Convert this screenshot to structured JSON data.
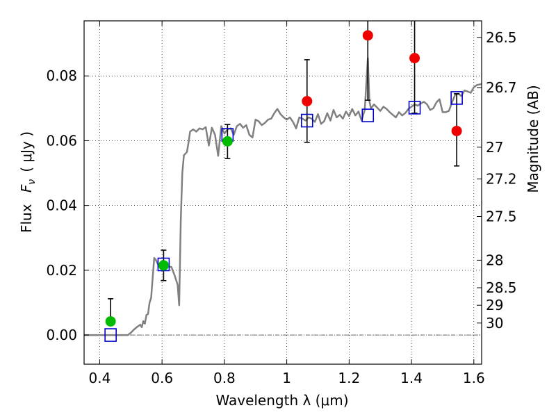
{
  "chart_data": {
    "type": "scatter",
    "xlabel": "Wavelength  λ (μm)",
    "ylabel_text": "Flux",
    "ylabel_math": "F",
    "ylabel_math_sub": "ν",
    "ylabel_unit": "(  μJy )",
    "y2label": "Magnitude (AB)",
    "xlim": [
      0.35,
      1.625
    ],
    "ylim": [
      -0.009,
      0.097
    ],
    "grid": true,
    "x_ticks": [
      0.4,
      0.6,
      0.8,
      1.0,
      1.2,
      1.4,
      1.6
    ],
    "x_tick_labels": [
      "0.4",
      "0.6",
      "0.8",
      "1",
      "1.2",
      "1.4",
      "1.6"
    ],
    "y_ticks": [
      0.0,
      0.02,
      0.04,
      0.06,
      0.08
    ],
    "y_tick_labels": [
      "0.00",
      "0.02",
      "0.04",
      "0.06",
      "0.08"
    ],
    "mag_ticks": [
      {
        "label": "26.5",
        "flux": 0.0919
      },
      {
        "label": "26.7",
        "flux": 0.0764
      },
      {
        "label": "27",
        "flux": 0.058
      },
      {
        "label": "27.2",
        "flux": 0.0482
      },
      {
        "label": "27.5",
        "flux": 0.0366
      },
      {
        "label": "28",
        "flux": 0.0231
      },
      {
        "label": "28.5",
        "flux": 0.0146
      },
      {
        "label": "29",
        "flux": 0.0092
      },
      {
        "label": "30",
        "flux": 0.0037
      }
    ],
    "colors": {
      "model": "#808080",
      "detection": "#00bb00",
      "upper": "#ee0000",
      "model_box": "#0000cc",
      "errorbar": "#000000",
      "zero_line": "#555555"
    },
    "series": [
      {
        "kind": "model_spectrum",
        "points": [
          [
            0.35,
            0.0
          ],
          [
            0.49,
            0.0
          ],
          [
            0.5,
            0.0007
          ],
          [
            0.51,
            0.0017
          ],
          [
            0.52,
            0.0025
          ],
          [
            0.53,
            0.0032
          ],
          [
            0.535,
            0.0024
          ],
          [
            0.54,
            0.0043
          ],
          [
            0.545,
            0.0035
          ],
          [
            0.55,
            0.0062
          ],
          [
            0.555,
            0.0065
          ],
          [
            0.56,
            0.01
          ],
          [
            0.565,
            0.0115
          ],
          [
            0.57,
            0.0178
          ],
          [
            0.575,
            0.0238
          ],
          [
            0.58,
            0.0232
          ],
          [
            0.59,
            0.0212
          ],
          [
            0.6,
            0.021
          ],
          [
            0.61,
            0.0225
          ],
          [
            0.62,
            0.0212
          ],
          [
            0.63,
            0.021
          ],
          [
            0.64,
            0.0185
          ],
          [
            0.65,
            0.0155
          ],
          [
            0.655,
            0.0092
          ],
          [
            0.66,
            0.0352
          ],
          [
            0.665,
            0.05
          ],
          [
            0.67,
            0.0555
          ],
          [
            0.68,
            0.0565
          ],
          [
            0.685,
            0.0595
          ],
          [
            0.69,
            0.0628
          ],
          [
            0.7,
            0.0635
          ],
          [
            0.71,
            0.0628
          ],
          [
            0.72,
            0.0638
          ],
          [
            0.73,
            0.0635
          ],
          [
            0.74,
            0.0642
          ],
          [
            0.75,
            0.0585
          ],
          [
            0.76,
            0.064
          ],
          [
            0.77,
            0.0618
          ],
          [
            0.78,
            0.0553
          ],
          [
            0.79,
            0.0645
          ],
          [
            0.8,
            0.0622
          ],
          [
            0.81,
            0.0635
          ],
          [
            0.82,
            0.0638
          ],
          [
            0.83,
            0.0618
          ],
          [
            0.84,
            0.0645
          ],
          [
            0.85,
            0.0652
          ],
          [
            0.86,
            0.064
          ],
          [
            0.87,
            0.0648
          ],
          [
            0.88,
            0.0618
          ],
          [
            0.89,
            0.061
          ],
          [
            0.9,
            0.0665
          ],
          [
            0.91,
            0.066
          ],
          [
            0.92,
            0.0648
          ],
          [
            0.93,
            0.0655
          ],
          [
            0.94,
            0.0665
          ],
          [
            0.95,
            0.0668
          ],
          [
            0.96,
            0.0685
          ],
          [
            0.97,
            0.0698
          ],
          [
            0.98,
            0.0682
          ],
          [
            0.99,
            0.0672
          ],
          [
            1.0,
            0.0665
          ],
          [
            1.01,
            0.0672
          ],
          [
            1.02,
            0.0658
          ],
          [
            1.03,
            0.0638
          ],
          [
            1.04,
            0.0672
          ],
          [
            1.05,
            0.0668
          ],
          [
            1.06,
            0.0662
          ],
          [
            1.07,
            0.0672
          ],
          [
            1.08,
            0.0668
          ],
          [
            1.09,
            0.0658
          ],
          [
            1.1,
            0.0682
          ],
          [
            1.11,
            0.0652
          ],
          [
            1.12,
            0.066
          ],
          [
            1.13,
            0.0685
          ],
          [
            1.14,
            0.0662
          ],
          [
            1.15,
            0.0695
          ],
          [
            1.16,
            0.0672
          ],
          [
            1.17,
            0.068
          ],
          [
            1.18,
            0.0668
          ],
          [
            1.19,
            0.069
          ],
          [
            1.2,
            0.0676
          ],
          [
            1.21,
            0.0698
          ],
          [
            1.22,
            0.0678
          ],
          [
            1.23,
            0.069
          ],
          [
            1.24,
            0.0662
          ],
          [
            1.25,
            0.0695
          ],
          [
            1.26,
            0.0855
          ],
          [
            1.265,
            0.0722
          ],
          [
            1.27,
            0.07
          ],
          [
            1.28,
            0.0712
          ],
          [
            1.29,
            0.0702
          ],
          [
            1.3,
            0.0692
          ],
          [
            1.31,
            0.0705
          ],
          [
            1.32,
            0.0698
          ],
          [
            1.33,
            0.0688
          ],
          [
            1.34,
            0.068
          ],
          [
            1.35,
            0.0672
          ],
          [
            1.36,
            0.0688
          ],
          [
            1.37,
            0.0678
          ],
          [
            1.38,
            0.0685
          ],
          [
            1.39,
            0.0698
          ],
          [
            1.4,
            0.0705
          ],
          [
            1.41,
            0.0712
          ],
          [
            1.42,
            0.0708
          ],
          [
            1.43,
            0.0715
          ],
          [
            1.44,
            0.072
          ],
          [
            1.45,
            0.0712
          ],
          [
            1.46,
            0.0695
          ],
          [
            1.47,
            0.07
          ],
          [
            1.48,
            0.0718
          ],
          [
            1.49,
            0.0728
          ],
          [
            1.5,
            0.0688
          ],
          [
            1.51,
            0.0688
          ],
          [
            1.52,
            0.0692
          ],
          [
            1.53,
            0.0718
          ],
          [
            1.54,
            0.0742
          ],
          [
            1.55,
            0.0745
          ],
          [
            1.56,
            0.0738
          ],
          [
            1.57,
            0.0755
          ],
          [
            1.58,
            0.0752
          ],
          [
            1.59,
            0.0748
          ],
          [
            1.6,
            0.0765
          ],
          [
            1.61,
            0.0772
          ],
          [
            1.625,
            0.0775
          ]
        ]
      },
      {
        "kind": "observed_detections",
        "points": [
          {
            "x": 0.435,
            "y": 0.0042,
            "err_lo": 0.0033,
            "err_hi": 0.0112
          },
          {
            "x": 0.605,
            "y": 0.0215,
            "err_lo": 0.0168,
            "err_hi": 0.0262
          },
          {
            "x": 0.81,
            "y": 0.0598,
            "err_lo": 0.0545,
            "err_hi": 0.065
          }
        ]
      },
      {
        "kind": "observed_nondetections",
        "points": [
          {
            "x": 1.065,
            "y": 0.0722,
            "err_lo": 0.0595,
            "err_hi": 0.085
          },
          {
            "x": 1.26,
            "y": 0.0925,
            "err_lo": 0.0725,
            "err_hi": 0.097
          },
          {
            "x": 1.41,
            "y": 0.0855,
            "err_lo": 0.0685,
            "err_hi": 0.097
          },
          {
            "x": 1.545,
            "y": 0.063,
            "err_lo": 0.0522,
            "err_hi": 0.0745
          }
        ]
      },
      {
        "kind": "model_photometry",
        "points": [
          {
            "x": 0.435,
            "y": 0.0
          },
          {
            "x": 0.605,
            "y": 0.0218
          },
          {
            "x": 0.81,
            "y": 0.0618
          },
          {
            "x": 1.065,
            "y": 0.0662
          },
          {
            "x": 1.26,
            "y": 0.0678
          },
          {
            "x": 1.41,
            "y": 0.0702
          },
          {
            "x": 1.545,
            "y": 0.0732
          }
        ]
      }
    ]
  }
}
